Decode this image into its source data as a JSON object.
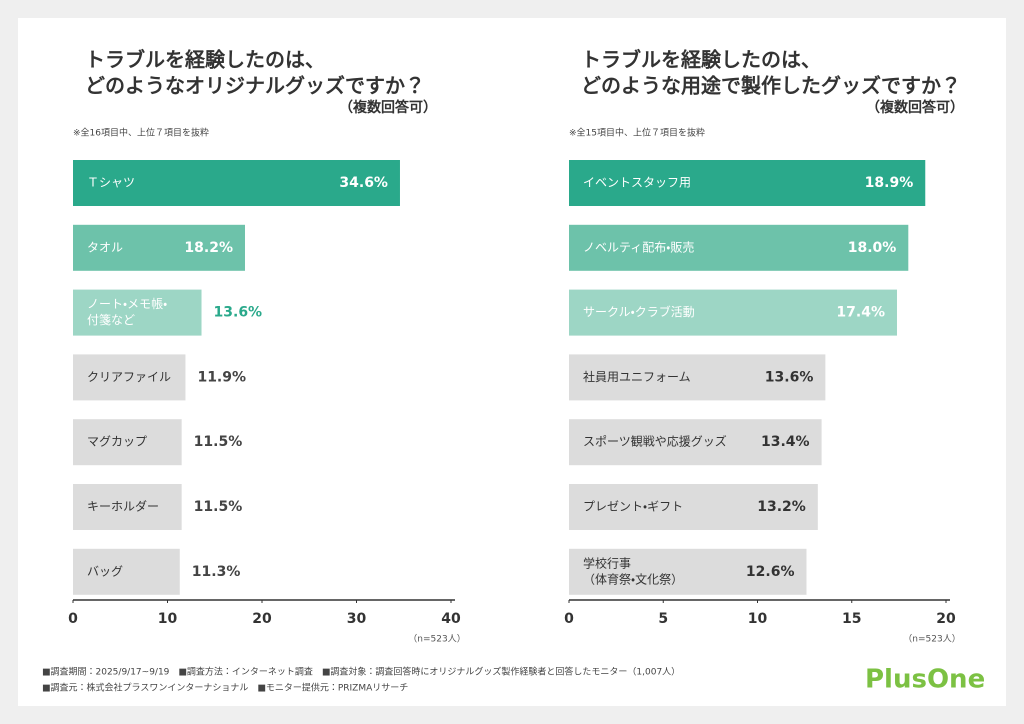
{
  "chart_data": [
    {
      "type": "bar",
      "title": [
        "トラブルを経験したのは、",
        "どのようなオリジナルグッズですか？"
      ],
      "subtitle": "（複数回答可）",
      "note": "※全16項目中、上位７項目を抜粋",
      "sample": "（n=523人）",
      "categories": [
        "Ｔシャツ",
        "タオル",
        [
          "ノート・メモ帳・",
          "付箋など"
        ],
        "クリアファイル",
        "マグカップ",
        "キーホルダー",
        "バッグ"
      ],
      "values": [
        34.6,
        18.2,
        13.6,
        11.9,
        11.5,
        11.5,
        11.3
      ],
      "value_labels": [
        "34.6%",
        "18.2%",
        "13.6%",
        "11.9%",
        "11.5%",
        "11.5%",
        "11.3%"
      ],
      "colors": [
        "#2aa98b",
        "#6dc2aa",
        "#9dd6c5",
        "#dcdcdc",
        "#dcdcdc",
        "#dcdcdc",
        "#dcdcdc"
      ],
      "xlim": [
        0,
        40
      ],
      "xticks": [
        0,
        10,
        20,
        30,
        40
      ]
    },
    {
      "type": "bar",
      "title": [
        "トラブルを経験したのは、",
        "どのような用途で製作したグッズですか？"
      ],
      "subtitle": "（複数回答可）",
      "note": "※全15項目中、上位７項目を抜粋",
      "sample": "（n=523人）",
      "categories": [
        "イベントスタッフ用",
        "ノベルティ配布・販売",
        "サークル・クラブ活動",
        "社員用ユニフォーム",
        "スポーツ観戦や応援グッズ",
        "プレゼント・ギフト",
        [
          "学校行事",
          "（体育祭・文化祭）"
        ]
      ],
      "values": [
        18.9,
        18.0,
        17.4,
        13.6,
        13.4,
        13.2,
        12.6
      ],
      "value_labels": [
        "18.9%",
        "18.0%",
        "17.4%",
        "13.6%",
        "13.4%",
        "13.2%",
        "12.6%"
      ],
      "colors": [
        "#2aa98b",
        "#6dc2aa",
        "#9dd6c5",
        "#dcdcdc",
        "#dcdcdc",
        "#dcdcdc",
        "#dcdcdc"
      ],
      "xlim": [
        0,
        20
      ],
      "xticks": [
        0,
        5,
        10,
        15,
        20
      ]
    }
  ],
  "footer": [
    "■調査期間：2025/9/17~9/19　■調査方法：インターネット調査　■調査対象：調査回答時にオリジナルグッズ製作経験者と回答したモニター（1,007人）",
    "■調査元：株式会社プラスワンインターナショナル　■モニター提供元：PRIZMAリサーチ"
  ],
  "logo": "PlusOne"
}
